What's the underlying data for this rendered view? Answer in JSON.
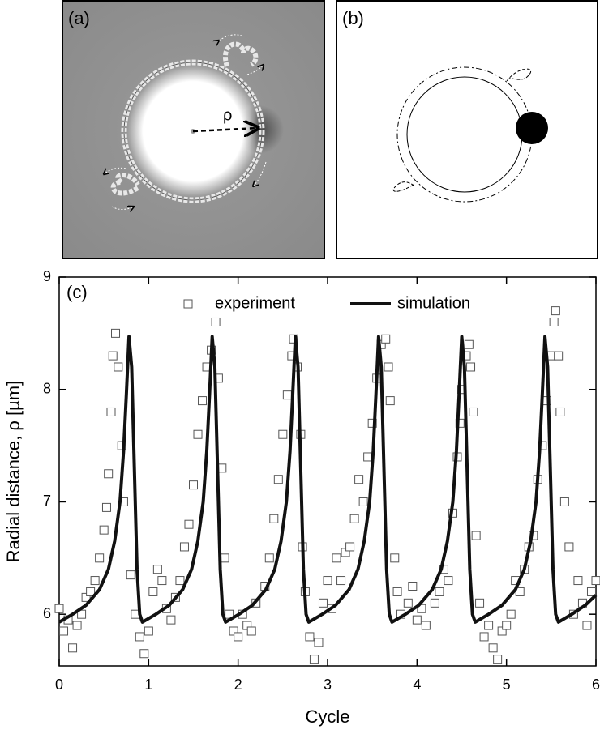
{
  "panels": {
    "a": {
      "label": "(a)",
      "rho": "ρ"
    },
    "b": {
      "label": "(b)"
    }
  },
  "chart_data": {
    "type": "scatter-line",
    "panel_label": "(c)",
    "x_label": "Cycle",
    "y_label": "Radial distance, ρ [µm]",
    "xlim": [
      0,
      6
    ],
    "ylim": [
      5.54,
      9
    ],
    "xticks": [
      0,
      1,
      2,
      3,
      4,
      5,
      6
    ],
    "yticks": [
      6,
      7,
      8,
      9
    ],
    "series": [
      {
        "name": "experiment",
        "color": "#555555",
        "mode": "markers",
        "x": [
          0.0,
          0.05,
          0.1,
          0.15,
          0.2,
          0.25,
          0.3,
          0.35,
          0.4,
          0.45,
          0.5,
          0.53,
          0.55,
          0.58,
          0.6,
          0.63,
          0.66,
          0.7,
          0.72,
          0.8,
          0.85,
          0.9,
          0.95,
          1.0,
          1.05,
          1.1,
          1.15,
          1.2,
          1.25,
          1.3,
          1.35,
          1.4,
          1.45,
          1.5,
          1.55,
          1.6,
          1.65,
          1.7,
          1.75,
          1.78,
          1.82,
          1.85,
          1.9,
          1.95,
          2.0,
          2.05,
          2.1,
          2.15,
          2.2,
          2.3,
          2.35,
          2.4,
          2.45,
          2.5,
          2.55,
          2.6,
          2.62,
          2.66,
          2.7,
          2.72,
          2.75,
          2.8,
          2.85,
          2.9,
          2.95,
          3.0,
          3.05,
          3.1,
          3.15,
          3.2,
          3.25,
          3.3,
          3.35,
          3.4,
          3.45,
          3.5,
          3.55,
          3.6,
          3.65,
          3.68,
          3.7,
          3.75,
          3.78,
          3.82,
          3.9,
          3.95,
          4.0,
          4.05,
          4.1,
          4.2,
          4.25,
          4.3,
          4.35,
          4.4,
          4.45,
          4.48,
          4.5,
          4.55,
          4.58,
          4.6,
          4.63,
          4.66,
          4.7,
          4.75,
          4.8,
          4.85,
          4.9,
          4.95,
          5.0,
          5.05,
          5.1,
          5.15,
          5.2,
          5.25,
          5.3,
          5.35,
          5.4,
          5.45,
          5.5,
          5.53,
          5.55,
          5.58,
          5.6,
          5.65,
          5.7,
          5.75,
          5.8,
          5.85,
          5.9,
          5.95,
          6.0
        ],
        "values": [
          6.05,
          5.85,
          5.95,
          5.7,
          5.9,
          6.0,
          6.15,
          6.2,
          6.3,
          6.5,
          6.75,
          6.95,
          7.25,
          7.8,
          8.3,
          8.5,
          8.2,
          7.5,
          7.0,
          6.35,
          6.0,
          5.8,
          5.65,
          5.85,
          6.2,
          6.4,
          6.3,
          6.05,
          5.95,
          6.15,
          6.3,
          6.6,
          6.8,
          7.15,
          7.6,
          7.9,
          8.2,
          8.35,
          8.6,
          8.1,
          7.3,
          6.5,
          6.0,
          5.85,
          5.8,
          6.0,
          5.9,
          5.85,
          6.1,
          6.25,
          6.5,
          6.85,
          7.2,
          7.6,
          7.95,
          8.3,
          8.45,
          8.2,
          7.6,
          6.6,
          6.2,
          5.8,
          5.6,
          5.75,
          6.1,
          6.3,
          6.05,
          6.5,
          6.3,
          6.55,
          6.6,
          6.85,
          7.2,
          7.0,
          7.4,
          7.7,
          8.1,
          8.4,
          8.45,
          8.2,
          7.9,
          6.5,
          6.2,
          6.0,
          6.1,
          6.25,
          5.95,
          6.05,
          5.9,
          6.1,
          6.2,
          6.4,
          6.3,
          6.9,
          7.4,
          7.7,
          8.0,
          8.3,
          8.4,
          8.2,
          7.8,
          6.7,
          6.1,
          5.8,
          5.9,
          5.7,
          5.6,
          5.85,
          5.9,
          6.0,
          6.3,
          6.2,
          6.4,
          6.6,
          6.7,
          7.2,
          7.5,
          7.9,
          8.3,
          8.6,
          8.7,
          8.3,
          7.8,
          7.0,
          6.6,
          6.0,
          6.3,
          6.1,
          5.9,
          6.2,
          6.3
        ]
      },
      {
        "name": "simulation",
        "color": "#111111",
        "mode": "line",
        "x": [
          0,
          0.15,
          0.3,
          0.45,
          0.55,
          0.62,
          0.68,
          0.72,
          0.75,
          0.78,
          0.81,
          0.84,
          0.87,
          0.9,
          0.93,
          1.08,
          1.23,
          1.38,
          1.48,
          1.55,
          1.61,
          1.65,
          1.68,
          1.71,
          1.74,
          1.77,
          1.8,
          1.83,
          1.86,
          2.01,
          2.16,
          2.31,
          2.41,
          2.48,
          2.54,
          2.58,
          2.61,
          2.64,
          2.67,
          2.7,
          2.73,
          2.76,
          2.79,
          2.94,
          3.09,
          3.24,
          3.34,
          3.41,
          3.47,
          3.51,
          3.54,
          3.57,
          3.6,
          3.63,
          3.66,
          3.69,
          3.72,
          3.87,
          4.02,
          4.17,
          4.27,
          4.34,
          4.4,
          4.44,
          4.47,
          4.5,
          4.53,
          4.56,
          4.59,
          4.62,
          4.65,
          4.8,
          4.95,
          5.1,
          5.2,
          5.27,
          5.33,
          5.37,
          5.4,
          5.43,
          5.46,
          5.49,
          5.52,
          5.55,
          5.58,
          5.73,
          5.88,
          6.0
        ],
        "values": [
          5.93,
          6.0,
          6.08,
          6.22,
          6.4,
          6.65,
          7.0,
          7.45,
          7.95,
          8.47,
          8.2,
          7.3,
          6.4,
          6.0,
          5.93,
          6.0,
          6.08,
          6.22,
          6.4,
          6.65,
          7.0,
          7.45,
          7.95,
          8.47,
          8.2,
          7.3,
          6.4,
          6.0,
          5.93,
          6.0,
          6.08,
          6.22,
          6.4,
          6.65,
          7.0,
          7.45,
          7.95,
          8.47,
          8.2,
          7.3,
          6.4,
          6.0,
          5.93,
          6.0,
          6.08,
          6.22,
          6.4,
          6.65,
          7.0,
          7.45,
          7.95,
          8.47,
          8.2,
          7.3,
          6.4,
          6.0,
          5.93,
          6.0,
          6.08,
          6.22,
          6.4,
          6.65,
          7.0,
          7.45,
          7.95,
          8.47,
          8.2,
          7.3,
          6.4,
          6.0,
          5.93,
          6.0,
          6.08,
          6.22,
          6.4,
          6.65,
          7.0,
          7.45,
          7.95,
          8.47,
          8.2,
          7.3,
          6.4,
          6.0,
          5.93,
          6.0,
          6.08,
          6.17
        ]
      }
    ]
  }
}
